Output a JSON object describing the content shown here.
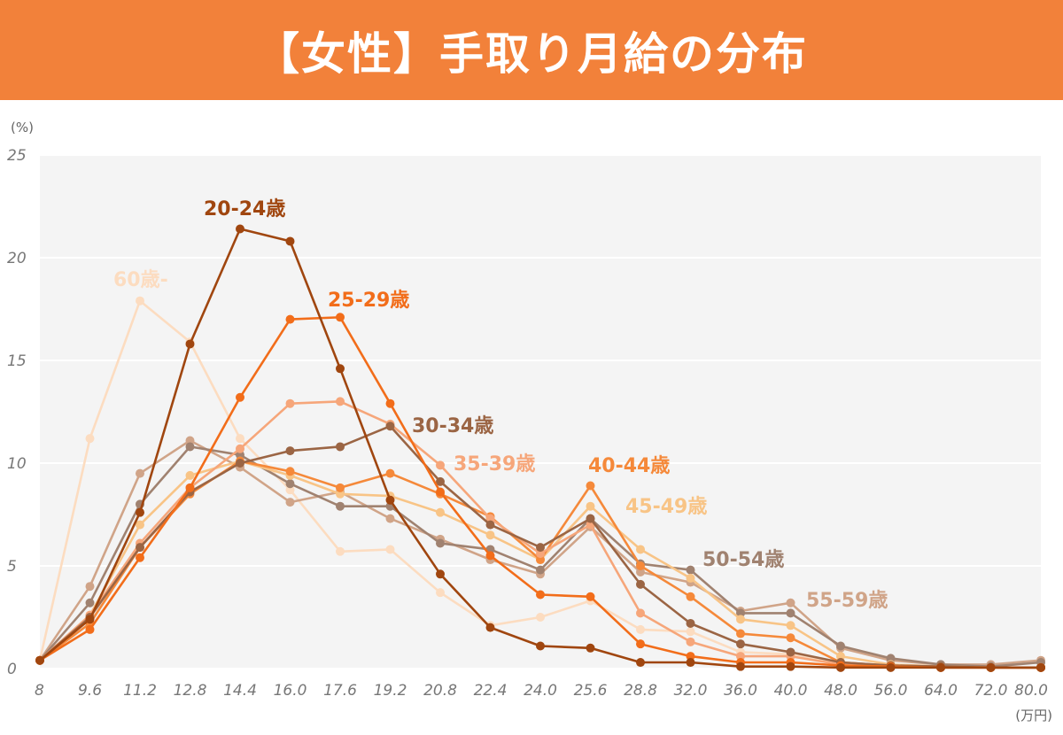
{
  "title": "【女性】手取り月給の分布",
  "chart_data": {
    "type": "line",
    "title": "【女性】手取り月給の分布",
    "y_unit": "(%)",
    "x_unit": "(万円)",
    "ylim": [
      0,
      25
    ],
    "y_ticks": [
      "0",
      "5",
      "10",
      "15",
      "20",
      "25"
    ],
    "grid": true,
    "categories": [
      "8",
      "9.6",
      "11.2",
      "12.8",
      "14.4",
      "16.0",
      "17.6",
      "19.2",
      "20.8",
      "22.4",
      "24.0",
      "25.6",
      "28.8",
      "32.0",
      "36.0",
      "40.0",
      "48.0",
      "56.0",
      "64.0",
      "72.0",
      "80.0"
    ],
    "series": [
      {
        "name": "20-24歳",
        "color": "#a0460f",
        "values": [
          0.4,
          2.4,
          7.6,
          15.8,
          21.4,
          20.8,
          14.6,
          8.2,
          4.6,
          2.0,
          1.1,
          1.0,
          0.3,
          0.3,
          0.1,
          0.1,
          0.05,
          0.05,
          0.05,
          0.05,
          0.05
        ]
      },
      {
        "name": "25-29歳",
        "color": "#f26d1a",
        "values": [
          0.4,
          1.9,
          5.4,
          8.8,
          13.2,
          17.0,
          17.1,
          12.9,
          8.6,
          5.5,
          3.6,
          3.5,
          1.2,
          0.6,
          0.3,
          0.3,
          0.15,
          0.1,
          0.05,
          0.05,
          0.05
        ]
      },
      {
        "name": "30-34歳",
        "color": "#9b6544",
        "values": [
          0.4,
          2.5,
          5.9,
          8.6,
          10.0,
          10.6,
          10.8,
          11.8,
          9.1,
          7.0,
          5.9,
          7.3,
          4.1,
          2.2,
          1.2,
          0.8,
          0.3,
          0.15,
          0.1,
          0.05,
          0.05
        ]
      },
      {
        "name": "35-39歳",
        "color": "#f6a67a",
        "values": [
          0.4,
          2.6,
          6.1,
          8.8,
          10.7,
          12.9,
          13.0,
          11.9,
          9.9,
          7.3,
          5.6,
          7.0,
          2.7,
          1.3,
          0.6,
          0.6,
          0.2,
          0.1,
          0.05,
          0.05,
          0.05
        ]
      },
      {
        "name": "40-44歳",
        "color": "#f5893a",
        "values": [
          0.4,
          2.2,
          5.9,
          8.5,
          10.1,
          9.6,
          8.8,
          9.5,
          8.5,
          7.4,
          5.3,
          8.9,
          5.0,
          3.5,
          1.7,
          1.5,
          0.3,
          0.15,
          0.1,
          0.05,
          0.05
        ]
      },
      {
        "name": "45-49歳",
        "color": "#f8c486",
        "values": [
          0.4,
          2.6,
          7.0,
          9.4,
          10.1,
          9.4,
          8.5,
          8.4,
          7.6,
          6.5,
          5.3,
          7.9,
          5.8,
          4.4,
          2.4,
          2.1,
          0.6,
          0.2,
          0.1,
          0.05,
          0.05
        ]
      },
      {
        "name": "50-54歳",
        "color": "#a08270",
        "values": [
          0.4,
          3.2,
          8.0,
          10.8,
          10.4,
          9.0,
          7.9,
          7.9,
          6.1,
          5.8,
          4.8,
          7.3,
          5.1,
          4.8,
          2.7,
          2.7,
          1.1,
          0.5,
          0.2,
          0.1,
          0.3
        ]
      },
      {
        "name": "55-59歳",
        "color": "#d0a488",
        "values": [
          0.4,
          4.0,
          9.5,
          11.1,
          9.8,
          8.1,
          8.6,
          7.3,
          6.3,
          5.3,
          4.6,
          6.9,
          4.7,
          4.2,
          2.8,
          3.2,
          1.0,
          0.4,
          0.2,
          0.2,
          0.4
        ]
      },
      {
        "name": "60歳-",
        "color": "#fcdcc0",
        "values": [
          0.4,
          11.2,
          17.9,
          15.9,
          11.2,
          8.7,
          5.7,
          5.8,
          3.7,
          2.1,
          2.5,
          3.3,
          1.9,
          1.8,
          0.8,
          0.7,
          0.2,
          0.1,
          0.05,
          0.05,
          0.05
        ]
      }
    ]
  }
}
